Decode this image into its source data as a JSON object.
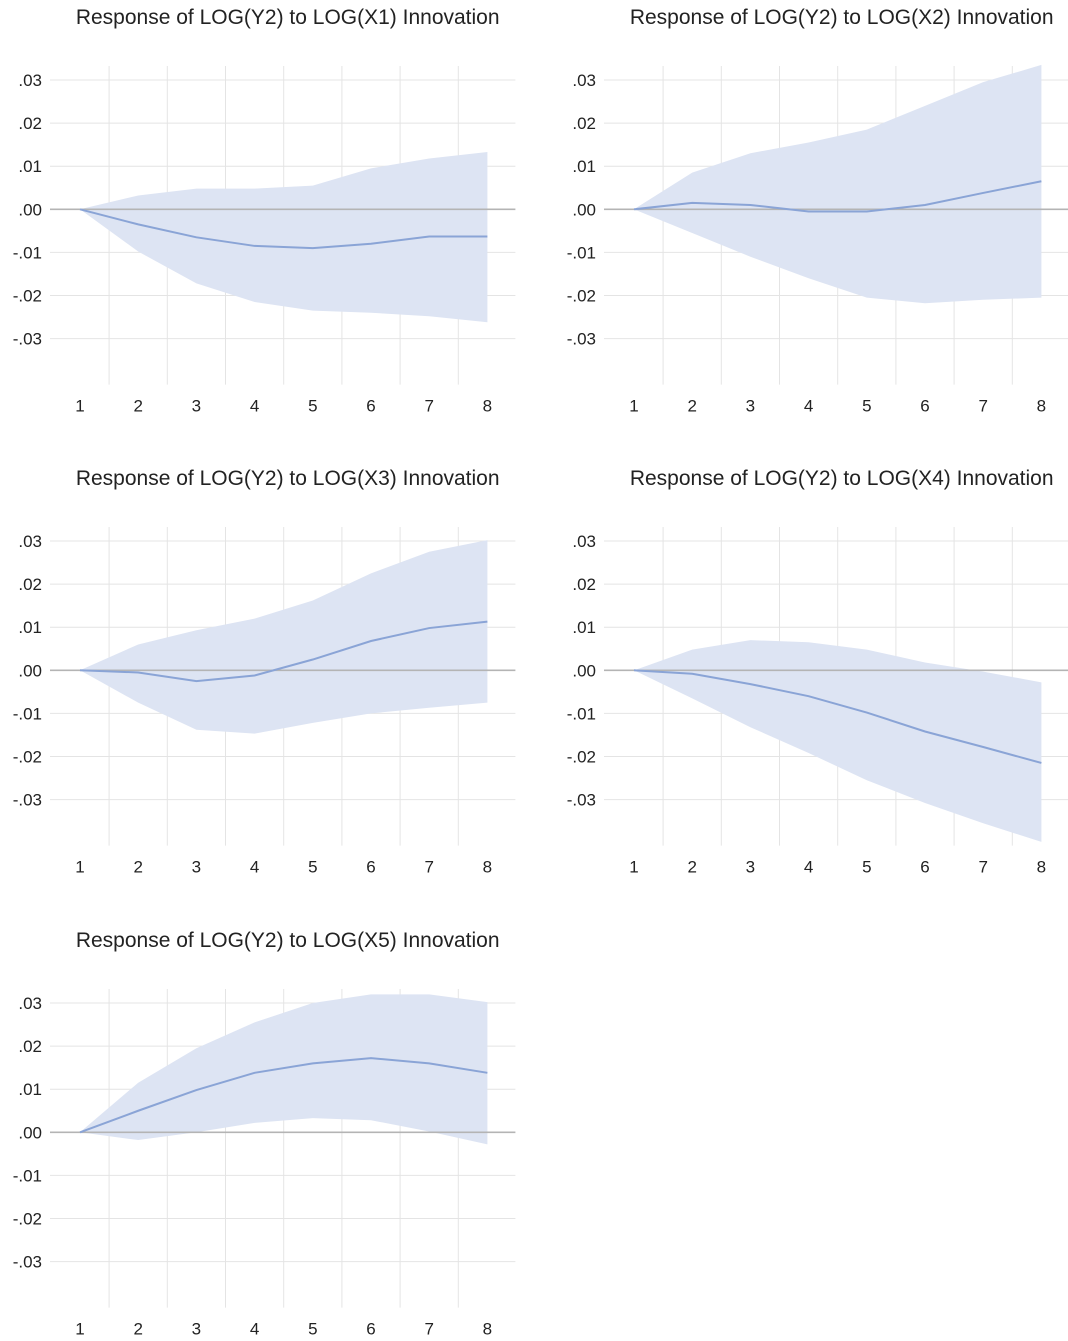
{
  "colors": {
    "band": "#dde4f3",
    "line": "#8aa4d6",
    "grid": "#e4e4e4",
    "zero": "#b4b4b4",
    "text": "#222222"
  },
  "chart_data": [
    {
      "type": "line",
      "title": "Response of LOG(Y2) to LOG(X1) Innovation",
      "x": [
        1,
        2,
        3,
        4,
        5,
        6,
        7,
        8
      ],
      "x_tick_labels": [
        "1",
        "2",
        "3",
        "4",
        "5",
        "6",
        "7",
        "8"
      ],
      "y_tick_values": [
        0.03,
        0.02,
        0.01,
        0.0,
        -0.01,
        -0.02,
        -0.03
      ],
      "y_tick_labels": [
        ".03",
        ".02",
        ".01",
        ".00",
        "-.01",
        "-.02",
        "-.03"
      ],
      "ylim": [
        -0.04,
        0.033
      ],
      "grid": true,
      "series": [
        {
          "role": "response",
          "values": [
            0.0,
            -0.0035,
            -0.0065,
            -0.0085,
            -0.009,
            -0.008,
            -0.0063,
            -0.0063
          ]
        },
        {
          "role": "upper",
          "values": [
            0.0,
            0.0032,
            0.0048,
            0.0048,
            0.0055,
            0.0095,
            0.0118,
            0.0133
          ]
        },
        {
          "role": "lower",
          "values": [
            0.0,
            -0.0098,
            -0.0172,
            -0.0215,
            -0.0235,
            -0.024,
            -0.0248,
            -0.0262
          ]
        }
      ]
    },
    {
      "type": "line",
      "title": "Response of LOG(Y2) to LOG(X2) Innovation",
      "x": [
        1,
        2,
        3,
        4,
        5,
        6,
        7,
        8
      ],
      "x_tick_labels": [
        "1",
        "2",
        "3",
        "4",
        "5",
        "6",
        "7",
        "8"
      ],
      "y_tick_values": [
        0.03,
        0.02,
        0.01,
        0.0,
        -0.01,
        -0.02,
        -0.03
      ],
      "y_tick_labels": [
        ".03",
        ".02",
        ".01",
        ".00",
        "-.01",
        "-.02",
        "-.03"
      ],
      "ylim": [
        -0.04,
        0.033
      ],
      "grid": true,
      "series": [
        {
          "role": "response",
          "values": [
            0.0,
            0.0015,
            0.001,
            -0.0005,
            -0.0005,
            0.001,
            0.0038,
            0.0065
          ]
        },
        {
          "role": "upper",
          "values": [
            0.0,
            0.0085,
            0.013,
            0.0155,
            0.0185,
            0.024,
            0.0295,
            0.0335
          ]
        },
        {
          "role": "lower",
          "values": [
            0.0,
            -0.0055,
            -0.011,
            -0.016,
            -0.0205,
            -0.0218,
            -0.021,
            -0.0205
          ]
        }
      ]
    },
    {
      "type": "line",
      "title": "Response of LOG(Y2) to LOG(X3) Innovation",
      "x": [
        1,
        2,
        3,
        4,
        5,
        6,
        7,
        8
      ],
      "x_tick_labels": [
        "1",
        "2",
        "3",
        "4",
        "5",
        "6",
        "7",
        "8"
      ],
      "y_tick_values": [
        0.03,
        0.02,
        0.01,
        0.0,
        -0.01,
        -0.02,
        -0.03
      ],
      "y_tick_labels": [
        ".03",
        ".02",
        ".01",
        ".00",
        "-.01",
        "-.02",
        "-.03"
      ],
      "ylim": [
        -0.04,
        0.033
      ],
      "grid": true,
      "series": [
        {
          "role": "response",
          "values": [
            0.0,
            -0.0005,
            -0.0025,
            -0.0012,
            0.0025,
            0.0068,
            0.0098,
            0.0113
          ]
        },
        {
          "role": "upper",
          "values": [
            0.0,
            0.006,
            0.0093,
            0.012,
            0.0162,
            0.0225,
            0.0275,
            0.0302
          ]
        },
        {
          "role": "lower",
          "values": [
            0.0,
            -0.0075,
            -0.0138,
            -0.0147,
            -0.0122,
            -0.01,
            -0.0087,
            -0.0075
          ]
        }
      ]
    },
    {
      "type": "line",
      "title": "Response of LOG(Y2) to LOG(X4) Innovation",
      "x": [
        1,
        2,
        3,
        4,
        5,
        6,
        7,
        8
      ],
      "x_tick_labels": [
        "1",
        "2",
        "3",
        "4",
        "5",
        "6",
        "7",
        "8"
      ],
      "y_tick_values": [
        0.03,
        0.02,
        0.01,
        0.0,
        -0.01,
        -0.02,
        -0.03
      ],
      "y_tick_labels": [
        ".03",
        ".02",
        ".01",
        ".00",
        "-.01",
        "-.02",
        "-.03"
      ],
      "ylim": [
        -0.04,
        0.033
      ],
      "grid": true,
      "series": [
        {
          "role": "response",
          "values": [
            0.0,
            -0.0008,
            -0.0032,
            -0.006,
            -0.0098,
            -0.0142,
            -0.0178,
            -0.0215
          ]
        },
        {
          "role": "upper",
          "values": [
            0.0,
            0.0048,
            0.007,
            0.0065,
            0.0048,
            0.0018,
            -0.0003,
            -0.0028
          ]
        },
        {
          "role": "lower",
          "values": [
            0.0,
            -0.0065,
            -0.0132,
            -0.0192,
            -0.0255,
            -0.0308,
            -0.0355,
            -0.0398
          ]
        }
      ]
    },
    {
      "type": "line",
      "title": "Response of LOG(Y2) to LOG(X5) Innovation",
      "x": [
        1,
        2,
        3,
        4,
        5,
        6,
        7,
        8
      ],
      "x_tick_labels": [
        "1",
        "2",
        "3",
        "4",
        "5",
        "6",
        "7",
        "8"
      ],
      "y_tick_values": [
        0.03,
        0.02,
        0.01,
        0.0,
        -0.01,
        -0.02,
        -0.03
      ],
      "y_tick_labels": [
        ".03",
        ".02",
        ".01",
        ".00",
        "-.01",
        "-.02",
        "-.03"
      ],
      "ylim": [
        -0.04,
        0.033
      ],
      "grid": true,
      "series": [
        {
          "role": "response",
          "values": [
            0.0,
            0.005,
            0.0098,
            0.0138,
            0.016,
            0.0172,
            0.016,
            0.0138
          ]
        },
        {
          "role": "upper",
          "values": [
            0.0,
            0.0115,
            0.0195,
            0.0255,
            0.03,
            0.032,
            0.032,
            0.0302
          ]
        },
        {
          "role": "lower",
          "values": [
            0.0,
            -0.0018,
            0.0,
            0.0022,
            0.0033,
            0.0028,
            0.0002,
            -0.0028
          ]
        }
      ]
    }
  ]
}
